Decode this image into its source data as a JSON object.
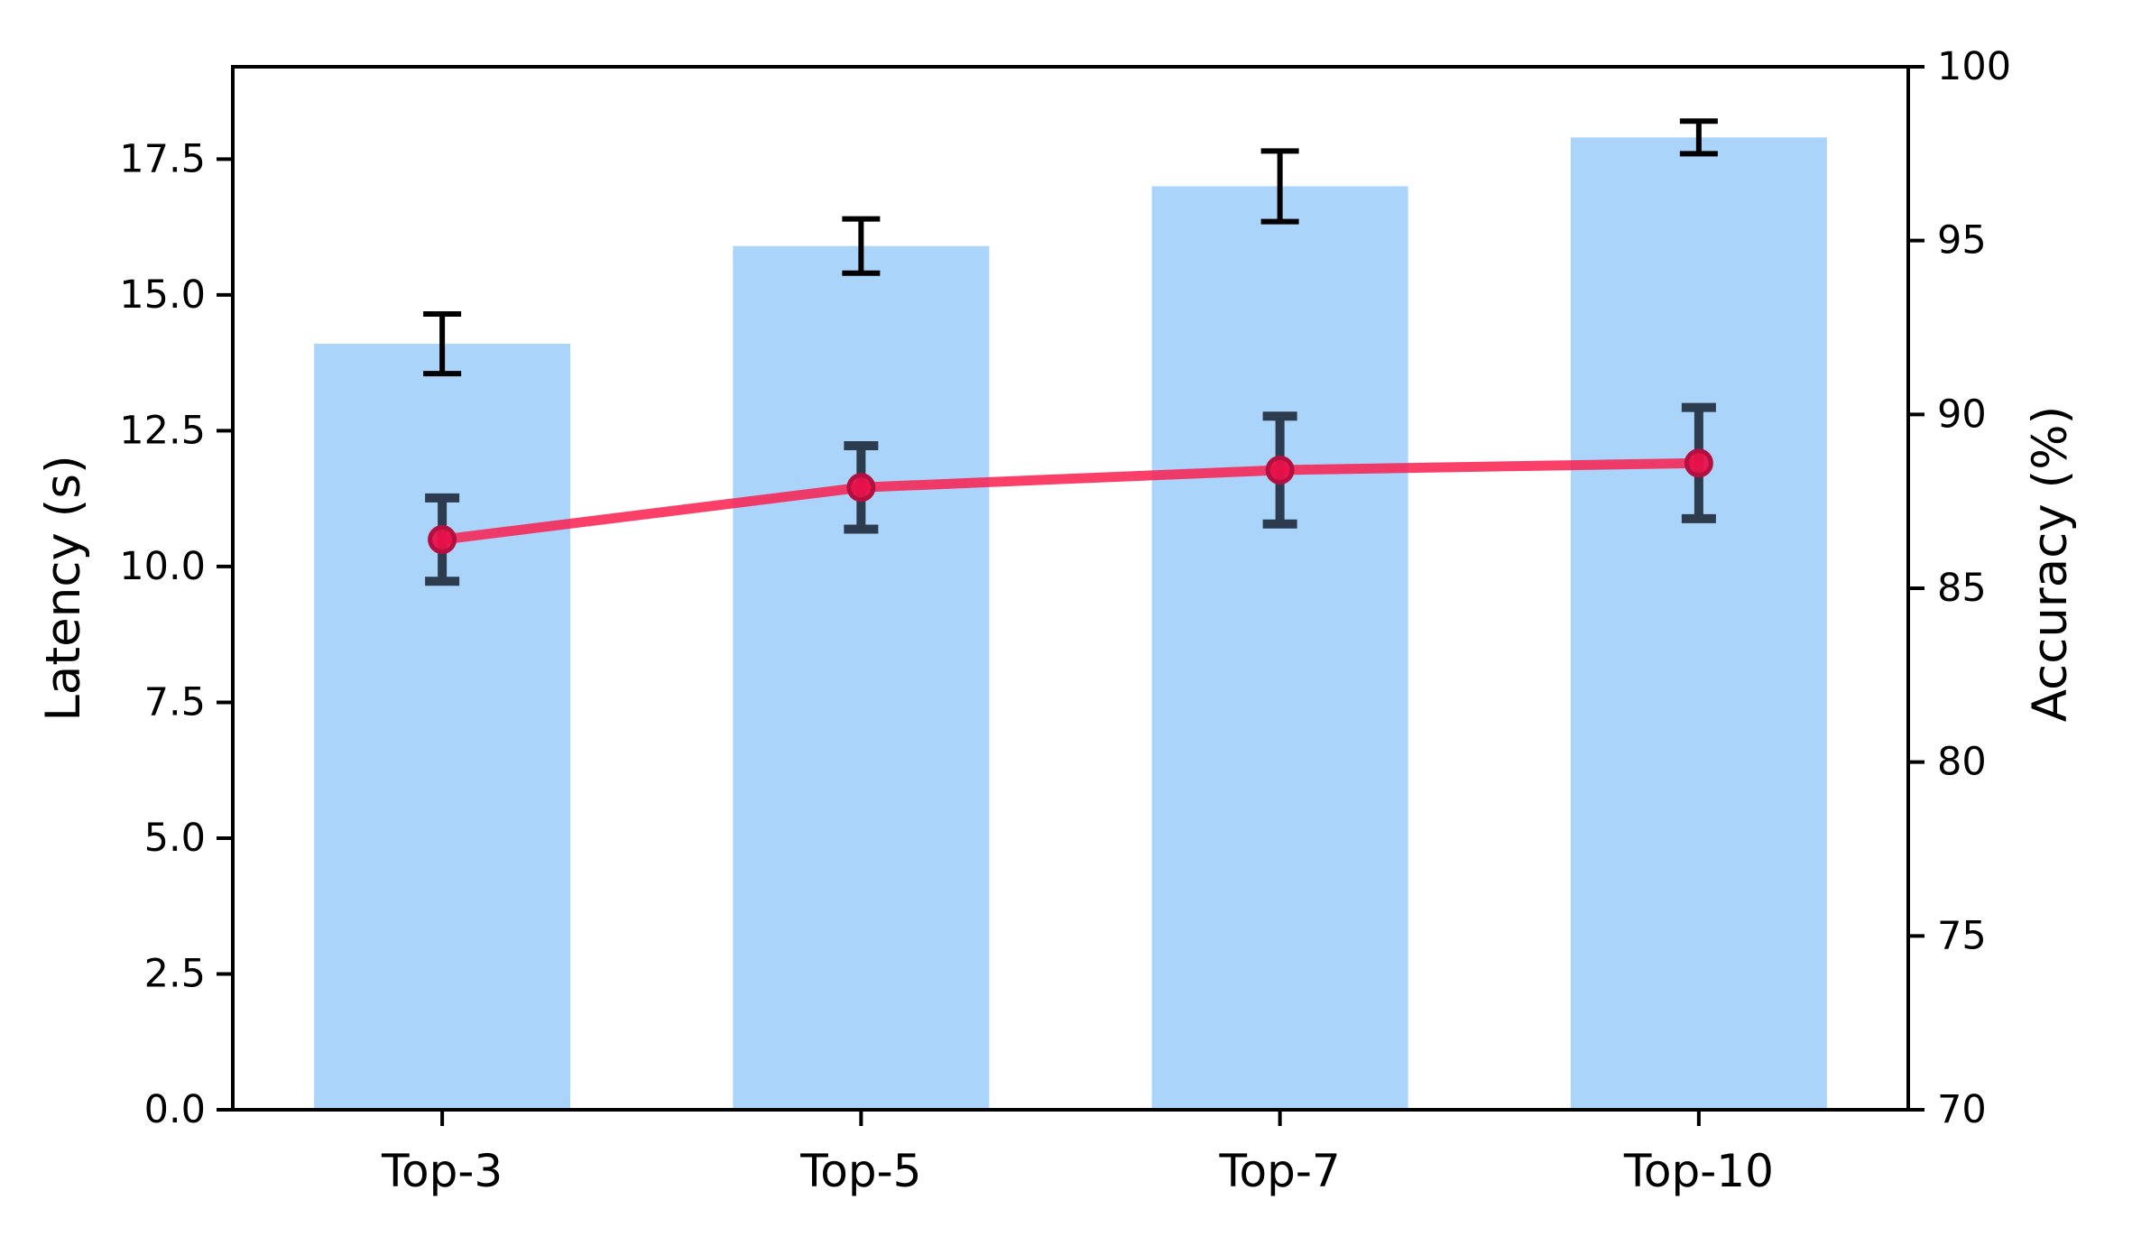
{
  "chart_data": {
    "type": "bar",
    "overlay_type": "line",
    "title": "",
    "grid": false,
    "legend": null,
    "categories": [
      "Top-3",
      "Top-5",
      "Top-7",
      "Top-10"
    ],
    "series": [
      {
        "name": "Latency (s)",
        "type": "bar",
        "axis": "left",
        "values": [
          14.1,
          15.9,
          17.0,
          17.9
        ],
        "errors": [
          0.55,
          0.5,
          0.65,
          0.3
        ],
        "color": "#aad4fa",
        "error_color": "#000000"
      },
      {
        "name": "Accuracy (%)",
        "type": "line",
        "axis": "right",
        "values": [
          86.4,
          87.9,
          88.4,
          88.6
        ],
        "errors": [
          1.2,
          1.2,
          1.55,
          1.6
        ],
        "color": "#f91f4d",
        "marker_face_color": "#e8114a",
        "marker_edge_color": "#b31040",
        "error_color": "#2c3b4d"
      }
    ],
    "left_axis": {
      "label": "Latency (s)",
      "tick_labels": [
        "0.0",
        "2.5",
        "5.0",
        "7.5",
        "10.0",
        "12.5",
        "15.0",
        "17.5"
      ],
      "tick_values": [
        0,
        2.5,
        5,
        7.5,
        10,
        12.5,
        15,
        17.5
      ],
      "range": [
        0,
        19.2
      ]
    },
    "right_axis": {
      "label": "Accuracy (%)",
      "tick_labels": [
        "70",
        "75",
        "80",
        "85",
        "90",
        "95",
        "100"
      ],
      "tick_values": [
        70,
        75,
        80,
        85,
        90,
        95,
        100
      ],
      "range": [
        70,
        100
      ]
    },
    "x_axis": {
      "tick_labels": [
        "Top-3",
        "Top-5",
        "Top-7",
        "Top-10"
      ]
    },
    "frame_color": "#000000",
    "background_color": "#ffffff"
  }
}
